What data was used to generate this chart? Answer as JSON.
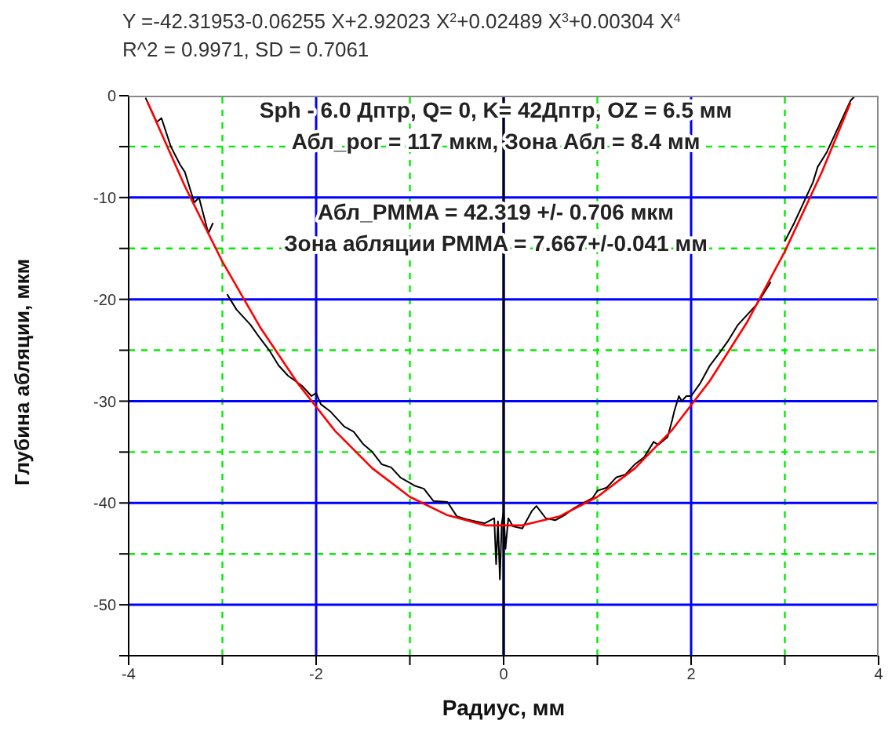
{
  "chart_data": {
    "type": "line",
    "title": "Y =-42.31953-0.06255 X+2.92023 X$^{2}$+0.02489 X$^{3}$+0.00304 X$^{4}$",
    "subtitle": "R^2 = 0.9971,  SD = 0.7061",
    "xlabel": "Радиус,  мм",
    "ylabel": "Глубина абляции,  мкм",
    "annotations": [
      "Sph  - 6.0 Дптр, Q= 0, K= 42Дптр, OZ = 6.5 мм",
      "Абл_рог = 117 мкм, Зона Абл = 8.4 мм",
      "Абл_PMMA = 42.319 +/- 0.706 мкм",
      "Зона абляции PMMA = 7.667+/-0.041 мм"
    ],
    "xlim": [
      -4,
      4
    ],
    "xticks": [
      -4,
      {
        "value": -3,
        "label": null
      },
      -2,
      {
        "value": -1,
        "label": null
      },
      0,
      {
        "value": 1,
        "label": null
      },
      2,
      {
        "value": 3,
        "label": null
      },
      4
    ],
    "ylim": [
      -55,
      0
    ],
    "yticks": [
      {
        "value": -55,
        "label": null
      },
      -50,
      {
        "value": -45,
        "label": null
      },
      -40,
      {
        "value": -35,
        "label": null
      },
      -30,
      {
        "value": -25,
        "label": null
      },
      -20,
      {
        "value": -15,
        "label": null
      },
      -10,
      {
        "value": -5,
        "label": null
      },
      0
    ],
    "grid": true,
    "legend": false,
    "marker": "none",
    "ref_lines": [
      {
        "axis": "x",
        "value": 0,
        "label": null,
        "color": "#000000"
      }
    ],
    "series": [
      {
        "color": "#000000",
        "x": [
          -3.82,
          -3.7,
          -3.65,
          -3.55,
          -3.45,
          -3.4,
          -3.3,
          -3.25,
          -3.15,
          -3.1,
          -3.0,
          -2.95,
          -2.85,
          -2.7,
          -2.6,
          -2.5,
          -2.4,
          -2.3,
          -2.15,
          -2.05,
          -2.0,
          -1.95,
          -1.85,
          -1.7,
          -1.6,
          -1.5,
          -1.4,
          -1.3,
          -1.2,
          -1.1,
          -0.95,
          -0.85,
          -0.75,
          -0.6,
          -0.5,
          -0.4,
          -0.3,
          -0.2,
          -0.1,
          -0.08,
          -0.06,
          -0.04,
          -0.02,
          0.0,
          0.02,
          0.05,
          0.1,
          0.2,
          0.3,
          0.35,
          0.45,
          0.55,
          0.65,
          0.75,
          0.85,
          0.95,
          1.0,
          1.1,
          1.2,
          1.3,
          1.4,
          1.5,
          1.6,
          1.65,
          1.75,
          1.8,
          1.82,
          1.87,
          1.9,
          1.95,
          2.0,
          2.1,
          2.2,
          2.3,
          2.4,
          2.5,
          2.6,
          2.7,
          2.85,
          2.92,
          3.0,
          3.1,
          3.2,
          3.3,
          3.35,
          3.45,
          3.5,
          3.6,
          3.7,
          3.75
        ],
        "values": [
          -0.2,
          -2.6,
          -2.2,
          -5.0,
          -6.8,
          -7.5,
          -10.5,
          -10.0,
          -13.5,
          -12.5,
          null,
          -19.5,
          -21.0,
          -22.5,
          -23.8,
          -25.0,
          -26.5,
          -27.5,
          -28.5,
          -29.5,
          -29.2,
          -30.3,
          -31.0,
          -32.5,
          -33.0,
          -34.2,
          -35.0,
          -36.2,
          -36.5,
          -37.5,
          -38.3,
          -38.6,
          -39.8,
          -39.9,
          -41.3,
          -41.6,
          -41.8,
          -42.0,
          -41.5,
          -46.0,
          -41.8,
          -47.5,
          -42.0,
          -40.8,
          -44.5,
          -41.5,
          -42.3,
          -42.5,
          -40.8,
          -40.3,
          -41.5,
          -41.7,
          -41.2,
          -40.5,
          -40.0,
          -39.5,
          -38.8,
          -38.5,
          -37.5,
          -37.2,
          -36.2,
          -35.5,
          -34.0,
          -34.3,
          -33.5,
          -31.8,
          -31.0,
          -29.5,
          -30.0,
          -29.5,
          -29.5,
          -28.2,
          -26.5,
          -25.3,
          -24.0,
          -22.5,
          -21.5,
          -20.5,
          -18.3,
          null,
          -14.3,
          -12.5,
          -10.5,
          -8.5,
          -7.0,
          -5.5,
          -4.5,
          -2.5,
          -0.5,
          0.0
        ]
      },
      {
        "color": "#ff0000",
        "x": [
          -3.8,
          -3.4,
          -3.0,
          -2.6,
          -2.2,
          -1.8,
          -1.4,
          -1.0,
          -0.6,
          -0.2,
          0.2,
          0.6,
          1.0,
          1.4,
          1.8,
          2.2,
          2.6,
          3.0,
          3.4,
          3.7
        ],
        "values": [
          -0.6,
          -8.9,
          -16.3,
          -22.7,
          -28.2,
          -32.9,
          -36.6,
          -39.4,
          -41.2,
          -42.2,
          -42.2,
          -41.3,
          -39.4,
          -36.6,
          -32.8,
          -28.0,
          -22.2,
          -15.3,
          -7.4,
          -0.7
        ]
      }
    ]
  }
}
